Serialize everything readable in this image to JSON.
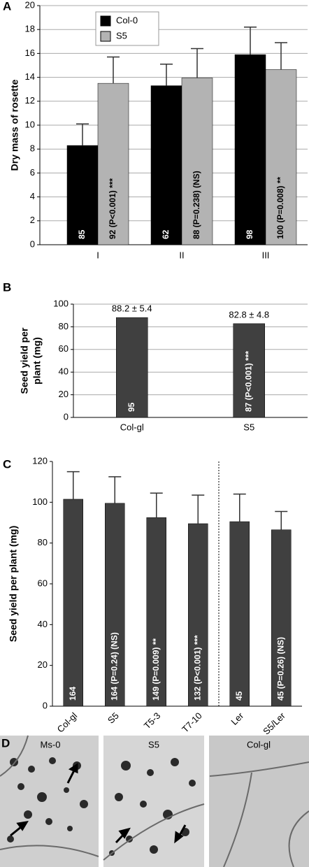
{
  "chart_data": [
    {
      "type": "bar",
      "panel": "A",
      "ylabel": "Dry mass of rosette",
      "categories": [
        "I",
        "II",
        "III"
      ],
      "series": [
        {
          "name": "Col-0",
          "color": "#000000",
          "values": [
            8.3,
            13.3,
            15.9
          ],
          "errors": [
            1.8,
            1.8,
            2.3
          ],
          "bar_labels": [
            "85",
            "62",
            "98"
          ]
        },
        {
          "name": "S5",
          "color": "#b3b3b3",
          "values": [
            13.5,
            13.95,
            14.65
          ],
          "errors": [
            2.2,
            2.45,
            2.25
          ],
          "bar_labels": [
            "92 (P<0.001) ***",
            "88 (P=0.238) (NS)",
            "100 (P=0.008) **"
          ]
        }
      ],
      "ylim": [
        0,
        20
      ],
      "yticks": [
        0,
        2,
        4,
        6,
        8,
        10,
        12,
        14,
        16,
        18,
        20
      ],
      "grid": true,
      "legend": "top-left"
    },
    {
      "type": "bar",
      "panel": "B",
      "ylabel": [
        "Seed yield per",
        "plant (mg)"
      ],
      "categories": [
        "Col-gl",
        "S5"
      ],
      "color": "#404040",
      "values": [
        88.2,
        82.8
      ],
      "value_labels": [
        "88.2  ± 5.4",
        "82.8  ± 4.8"
      ],
      "bar_labels": [
        "95",
        "87 (P<0.001) ***"
      ],
      "ylim": [
        0,
        100
      ],
      "yticks": [
        0,
        20,
        40,
        60,
        80,
        100
      ],
      "grid": true
    },
    {
      "type": "bar",
      "panel": "C",
      "ylabel": "Seed yield per plant (mg)",
      "categories": [
        "Col-gl",
        "S5",
        "T5-3",
        "T7-10",
        "Ler",
        "S5/Ler"
      ],
      "color": "#404040",
      "values": [
        101.5,
        99.5,
        92.5,
        89.5,
        90.5,
        86.5
      ],
      "errors": [
        13.5,
        13,
        12,
        14,
        13.5,
        9
      ],
      "bar_labels": [
        "164",
        "164 (P=0.24) (NS)",
        "149 (P=0.009) **",
        "132 (P<0.001) ***",
        "45",
        "45 (P=0.26) (NS)"
      ],
      "ylim": [
        0,
        120
      ],
      "yticks": [
        0,
        20,
        40,
        60,
        80,
        100,
        120
      ],
      "grid": false
    }
  ],
  "panel_d": {
    "label": "D",
    "images": [
      "Ms-0",
      "S5",
      "Col-gl"
    ]
  }
}
